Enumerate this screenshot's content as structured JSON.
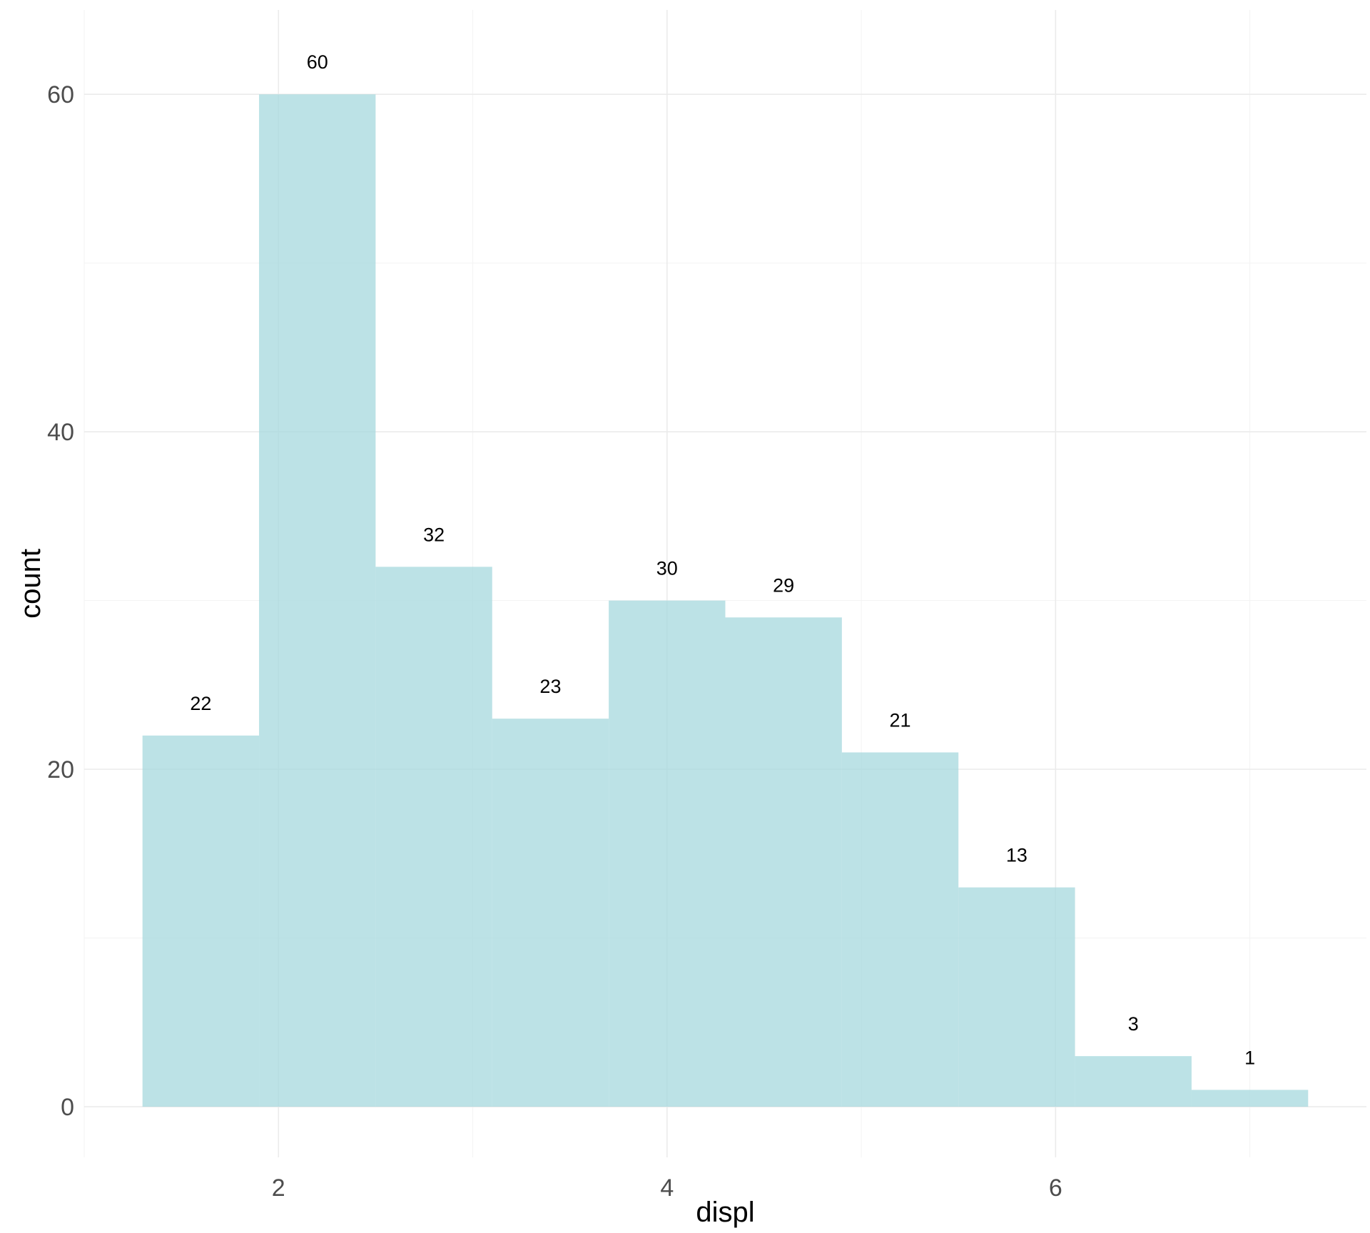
{
  "chart_data": {
    "type": "bar",
    "title": "",
    "xlabel": "displ",
    "ylabel": "count",
    "bins": [
      {
        "x_min": 1.3,
        "x_max": 1.9,
        "count": 22,
        "label": "22"
      },
      {
        "x_min": 1.9,
        "x_max": 2.5,
        "count": 60,
        "label": "60"
      },
      {
        "x_min": 2.5,
        "x_max": 3.1,
        "count": 32,
        "label": "32"
      },
      {
        "x_min": 3.1,
        "x_max": 3.7,
        "count": 23,
        "label": "23"
      },
      {
        "x_min": 3.7,
        "x_max": 4.3,
        "count": 30,
        "label": "30"
      },
      {
        "x_min": 4.3,
        "x_max": 4.9,
        "count": 29,
        "label": "29"
      },
      {
        "x_min": 4.9,
        "x_max": 5.5,
        "count": 21,
        "label": "21"
      },
      {
        "x_min": 5.5,
        "x_max": 6.1,
        "count": 13,
        "label": "13"
      },
      {
        "x_min": 6.1,
        "x_max": 6.7,
        "count": 3,
        "label": "3"
      },
      {
        "x_min": 6.7,
        "x_max": 7.3,
        "count": 1,
        "label": "1"
      }
    ],
    "xlim": [
      1.0,
      7.6
    ],
    "ylim": [
      -3,
      65
    ],
    "x_ticks": [
      {
        "value": 2,
        "label": "2"
      },
      {
        "value": 4,
        "label": "4"
      },
      {
        "value": 6,
        "label": "6"
      }
    ],
    "x_minor_ticks": [
      1,
      3,
      5,
      7
    ],
    "y_ticks": [
      {
        "value": 0,
        "label": "0"
      },
      {
        "value": 20,
        "label": "20"
      },
      {
        "value": 40,
        "label": "40"
      },
      {
        "value": 60,
        "label": "60"
      }
    ],
    "y_minor_ticks": [
      10,
      30,
      50
    ],
    "grid": true,
    "legend": "none",
    "colors": {
      "bar": "#a6d8dd",
      "grid": "#ebebeb",
      "text": "#4d4d4d"
    }
  }
}
